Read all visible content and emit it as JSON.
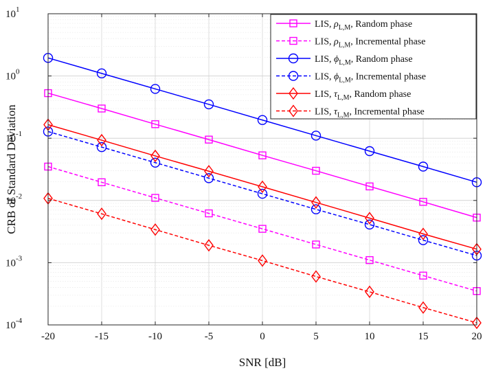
{
  "chart_data": {
    "type": "line",
    "title": "",
    "xlabel": "SNR [dB]",
    "ylabel": "CRB of Standard Deviation",
    "yscale": "log",
    "xlim": [
      -20,
      20
    ],
    "ylim": [
      0.0001,
      10
    ],
    "grid": true,
    "legend_position": "top-right",
    "x": [
      -20,
      -15,
      -10,
      -5,
      0,
      5,
      10,
      15,
      20
    ],
    "x_tick_labels": [
      "-20",
      "-15",
      "-10",
      "-5",
      "0",
      "5",
      "10",
      "15",
      "20"
    ],
    "y_ticks": [
      {
        "base": "10",
        "exp": "-4"
      },
      {
        "base": "10",
        "exp": "-3"
      },
      {
        "base": "10",
        "exp": "-2"
      },
      {
        "base": "10",
        "exp": "-1"
      },
      {
        "base": "10",
        "exp": "0"
      },
      {
        "base": "10",
        "exp": "1"
      }
    ],
    "series": [
      {
        "name": "LIS, ρL,M, Random phase",
        "prefix": "LIS, ",
        "symbol": "ρ",
        "subscript": "L,M",
        "suffix": ", Random phase",
        "color": "#ff00ff",
        "dashed": false,
        "marker": "square",
        "values": [
          0.53,
          0.3,
          0.168,
          0.095,
          0.053,
          0.03,
          0.0168,
          0.0095,
          0.0053
        ]
      },
      {
        "name": "LIS, ρL,M, Incremental phase",
        "prefix": "LIS, ",
        "symbol": "ρ",
        "subscript": "L,M",
        "suffix": ", Incremental phase",
        "color": "#ff00ff",
        "dashed": true,
        "marker": "square",
        "values": [
          0.035,
          0.0196,
          0.011,
          0.0062,
          0.0035,
          0.00196,
          0.0011,
          0.00062,
          0.00035
        ]
      },
      {
        "name": "LIS, ϕL,M, Random phase",
        "prefix": "LIS, ",
        "symbol": "ϕ",
        "subscript": "L,M",
        "suffix": ", Random phase",
        "color": "#0000ff",
        "dashed": false,
        "marker": "circle",
        "values": [
          1.95,
          1.1,
          0.62,
          0.35,
          0.196,
          0.11,
          0.062,
          0.035,
          0.0196
        ]
      },
      {
        "name": "LIS, ϕL,M, Incremental phase",
        "prefix": "LIS, ",
        "symbol": "ϕ",
        "subscript": "L,M",
        "suffix": ", Incremental phase",
        "color": "#0000ff",
        "dashed": true,
        "marker": "circle",
        "values": [
          0.128,
          0.072,
          0.0405,
          0.0228,
          0.0128,
          0.0072,
          0.0041,
          0.0023,
          0.0013
        ]
      },
      {
        "name": "LIS, τL,M, Random phase",
        "prefix": "LIS, ",
        "symbol": "τ",
        "subscript": "L,M",
        "suffix": ", Random phase",
        "color": "#ff0000",
        "dashed": false,
        "marker": "diamond",
        "values": [
          0.165,
          0.093,
          0.052,
          0.0295,
          0.0166,
          0.0093,
          0.0052,
          0.0029,
          0.00165
        ]
      },
      {
        "name": "LIS, τL,M, Incremental phase",
        "prefix": "LIS, ",
        "symbol": "τ",
        "subscript": "L,M",
        "suffix": ", Incremental phase",
        "color": "#ff0000",
        "dashed": true,
        "marker": "diamond",
        "values": [
          0.0108,
          0.0061,
          0.0034,
          0.0019,
          0.00108,
          0.0006,
          0.00034,
          0.00019,
          0.000108
        ]
      }
    ]
  }
}
